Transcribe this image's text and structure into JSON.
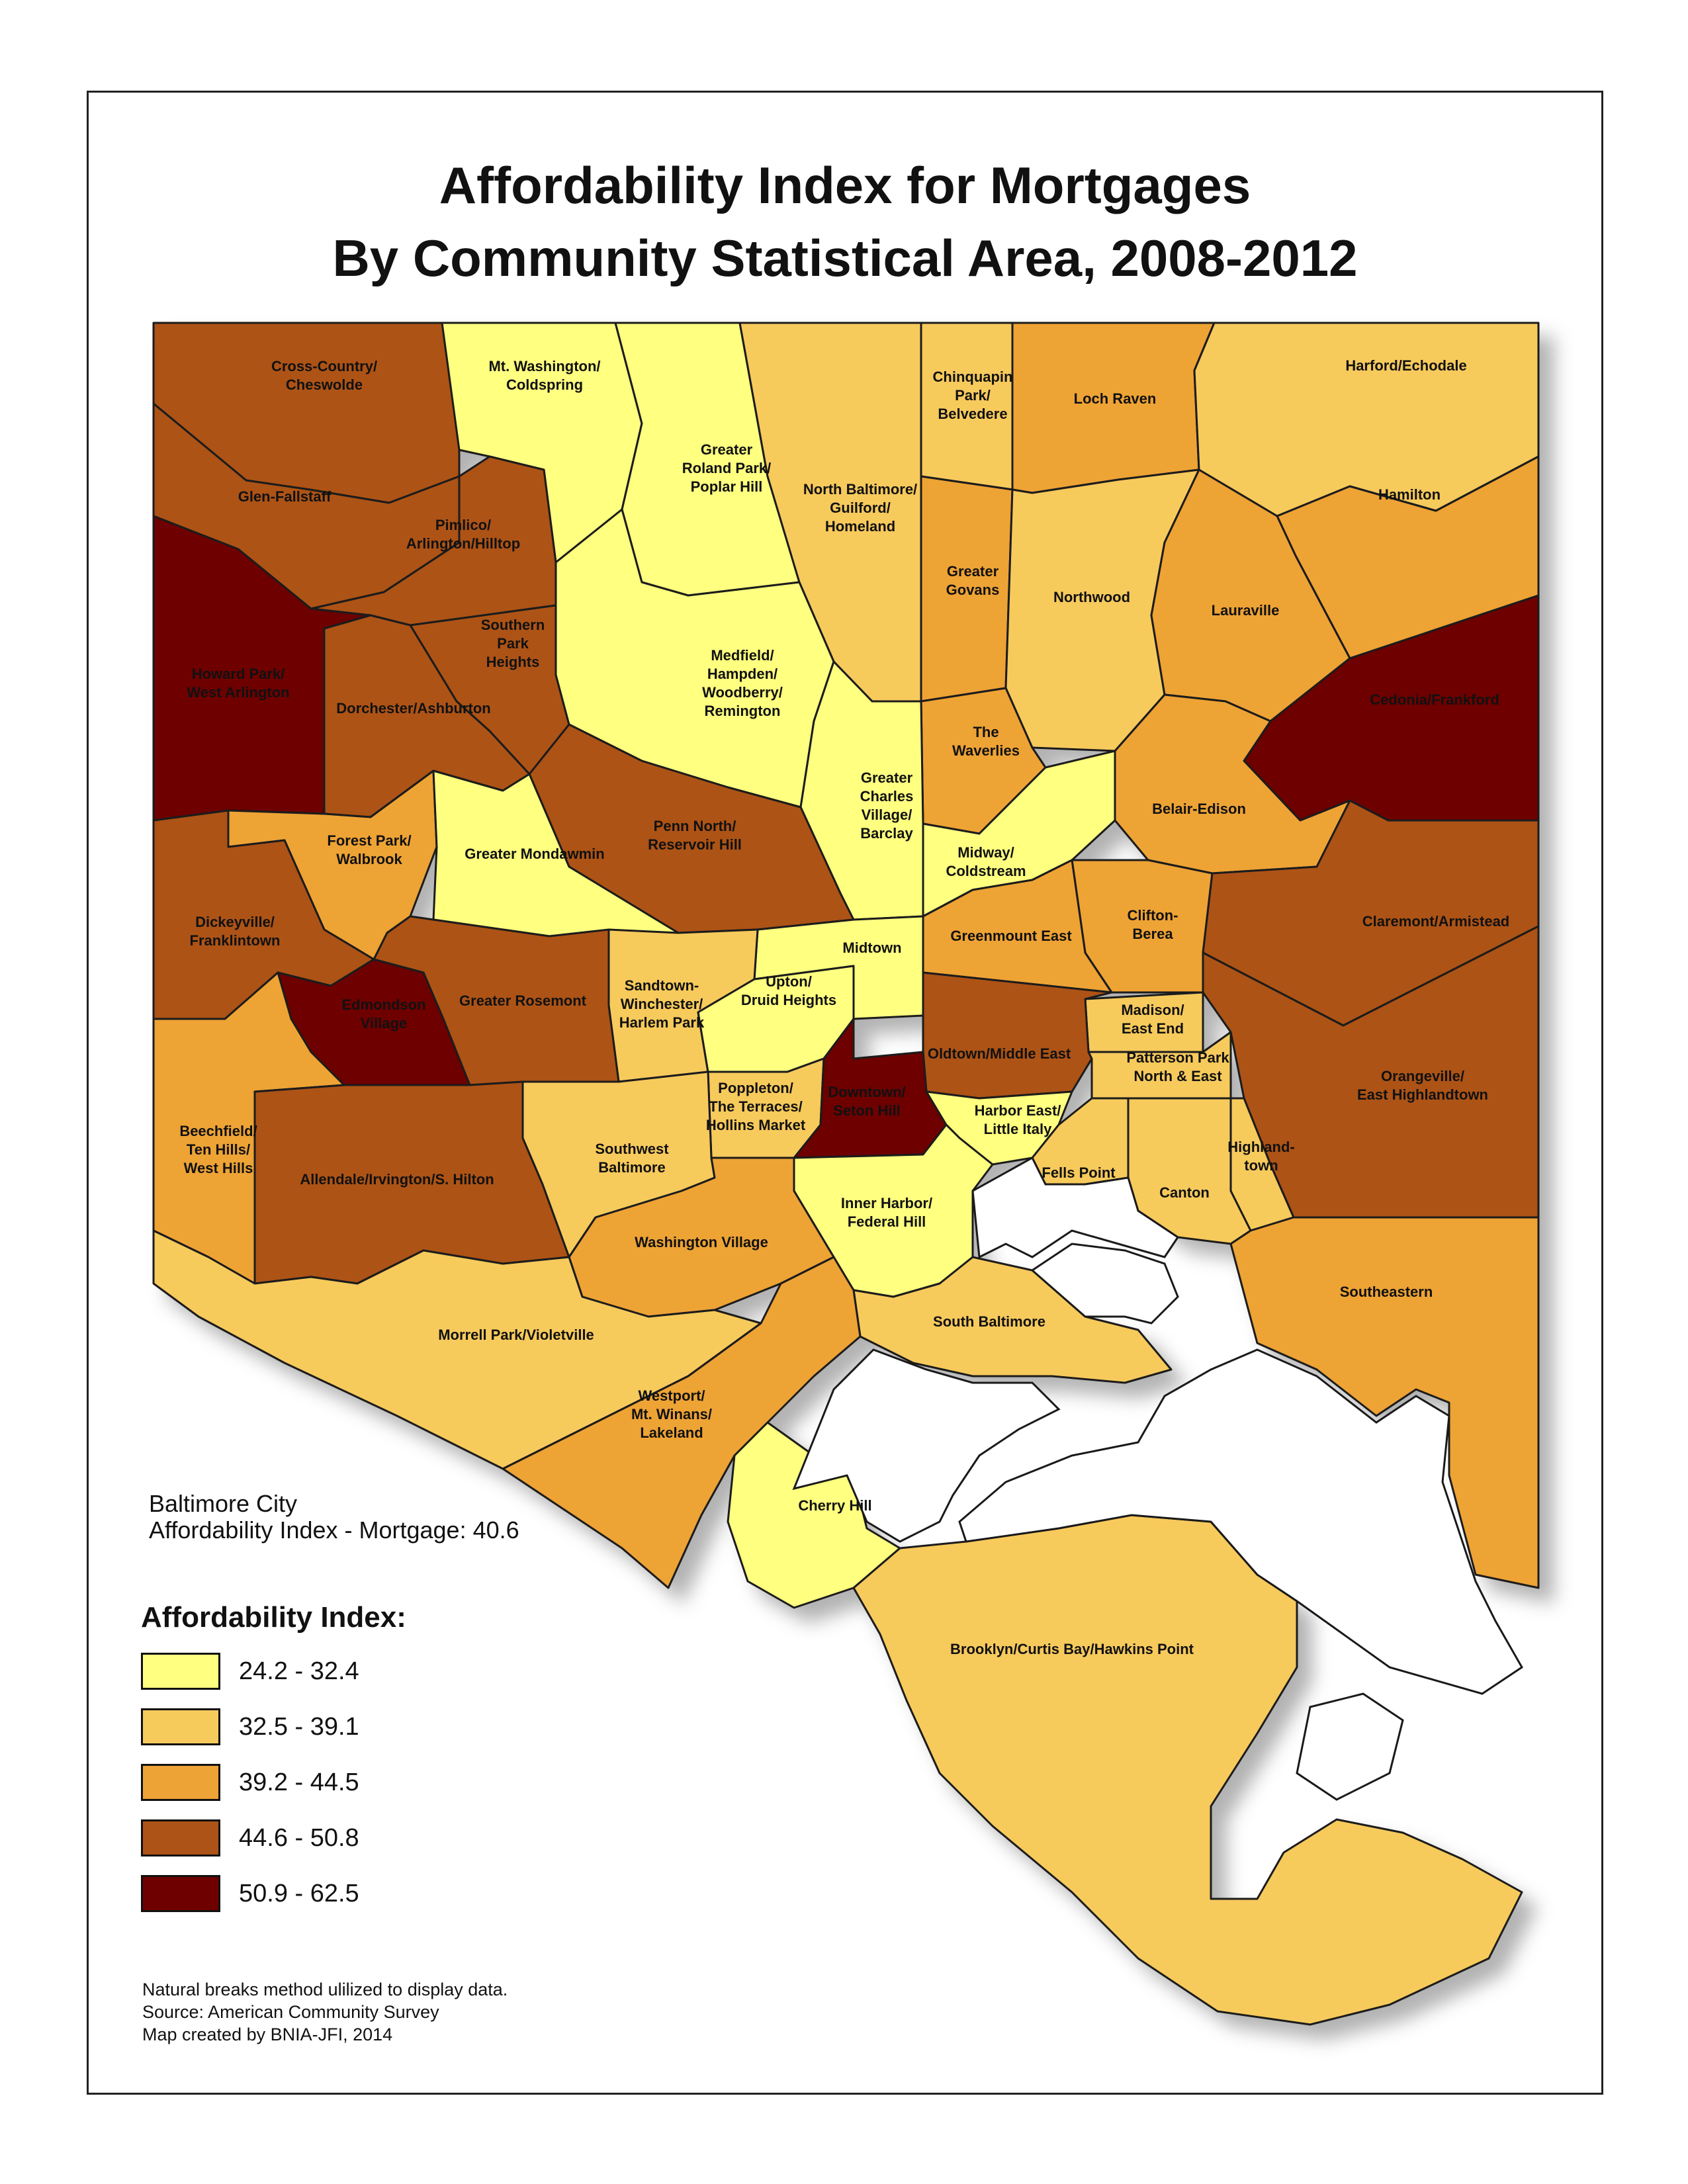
{
  "title": {
    "line1": "Affordability Index for Mortgages",
    "line2": "By Community Statistical Area, 2008-2012"
  },
  "city_summary": {
    "line1": "Baltimore City",
    "line2": "Affordability Index - Mortgage: 40.6"
  },
  "legend": {
    "title": "Affordability Index:",
    "classes": [
      {
        "label": "24.2 - 32.4",
        "color": "#ffff80"
      },
      {
        "label": "32.5 - 39.1",
        "color": "#f7ca5c"
      },
      {
        "label": "39.2 - 44.5",
        "color": "#eea336"
      },
      {
        "label": "44.6 - 50.8",
        "color": "#ad5318"
      },
      {
        "label": "50.9 - 62.5",
        "color": "#6e0000"
      }
    ]
  },
  "regions": [
    {
      "name": "Cross-Country/ Cheswolde",
      "lines": [
        "Cross-Country/",
        "Cheswolde"
      ],
      "class": 3
    },
    {
      "name": "Mt. Washington/ Coldspring",
      "lines": [
        "Mt. Washington/",
        "Coldspring"
      ],
      "class": 0
    },
    {
      "name": "Greater Roland Park/ Poplar Hill",
      "lines": [
        "Greater",
        "Roland Park/",
        "Poplar Hill"
      ],
      "class": 0
    },
    {
      "name": "North Baltimore/ Guilford/ Homeland",
      "lines": [
        "North Baltimore/",
        "Guilford/",
        "Homeland"
      ],
      "class": 1
    },
    {
      "name": "Chinquapin Park/ Belvedere",
      "lines": [
        "Chinquapin",
        "Park/",
        "Belvedere"
      ],
      "class": 1
    },
    {
      "name": "Loch Raven",
      "lines": [
        "Loch Raven"
      ],
      "class": 2
    },
    {
      "name": "Harford/Echodale",
      "lines": [
        "Harford/Echodale"
      ],
      "class": 1
    },
    {
      "name": "Glen-Fallstaff",
      "lines": [
        "Glen-Fallstaff"
      ],
      "class": 3
    },
    {
      "name": "Pimlico/ Arlington/Hilltop",
      "lines": [
        "Pimlico/",
        "Arlington/Hilltop"
      ],
      "class": 3
    },
    {
      "name": "Hamilton",
      "lines": [
        "Hamilton"
      ],
      "class": 2
    },
    {
      "name": "Greater Govans",
      "lines": [
        "Greater",
        "Govans"
      ],
      "class": 2
    },
    {
      "name": "Northwood",
      "lines": [
        "Northwood"
      ],
      "class": 1
    },
    {
      "name": "Lauraville",
      "lines": [
        "Lauraville"
      ],
      "class": 2
    },
    {
      "name": "Howard Park/ West Arlington",
      "lines": [
        "Howard Park/",
        "West Arlington"
      ],
      "class": 4
    },
    {
      "name": "Southern Park Heights",
      "lines": [
        "Southern",
        "Park",
        "Heights"
      ],
      "class": 3
    },
    {
      "name": "Dorchester/Ashburton",
      "lines": [
        "Dorchester/Ashburton"
      ],
      "class": 3
    },
    {
      "name": "Medfield/ Hampden/ Woodberry/ Remington",
      "lines": [
        "Medfield/",
        "Hampden/",
        "Woodberry/",
        "Remington"
      ],
      "class": 0
    },
    {
      "name": "The Waverlies",
      "lines": [
        "The",
        "Waverlies"
      ],
      "class": 2
    },
    {
      "name": "Cedonia/Frankford",
      "lines": [
        "Cedonia/Frankford"
      ],
      "class": 4
    },
    {
      "name": "Greater Charles Village/ Barclay",
      "lines": [
        "Greater",
        "Charles",
        "Village/",
        "Barclay"
      ],
      "class": 0
    },
    {
      "name": "Belair-Edison",
      "lines": [
        "Belair-Edison"
      ],
      "class": 2
    },
    {
      "name": "Forest Park/ Walbrook",
      "lines": [
        "Forest Park/",
        "Walbrook"
      ],
      "class": 2
    },
    {
      "name": "Penn North/ Reservoir Hill",
      "lines": [
        "Penn North/",
        "Reservoir Hill"
      ],
      "class": 3
    },
    {
      "name": "Greater Mondawmin",
      "lines": [
        "Greater Mondawmin"
      ],
      "class": 0
    },
    {
      "name": "Midway/ Coldstream",
      "lines": [
        "Midway/",
        "Coldstream"
      ],
      "class": 0
    },
    {
      "name": "Dickeyville/ Franklintown",
      "lines": [
        "Dickeyville/",
        "Franklintown"
      ],
      "class": 3
    },
    {
      "name": "Clifton-Berea",
      "lines": [
        "Clifton-",
        "Berea"
      ],
      "class": 2
    },
    {
      "name": "Claremont/Armistead",
      "lines": [
        "Claremont/Armistead"
      ],
      "class": 3
    },
    {
      "name": "Greenmount East",
      "lines": [
        "Greenmount East"
      ],
      "class": 2
    },
    {
      "name": "Midtown",
      "lines": [
        "Midtown"
      ],
      "class": 0
    },
    {
      "name": "Sandtown-Winchester/ Harlem Park",
      "lines": [
        "Sandtown-",
        "Winchester/",
        "Harlem Park"
      ],
      "class": 1
    },
    {
      "name": "Upton/ Druid Heights",
      "lines": [
        "Upton/",
        "Druid Heights"
      ],
      "class": 0
    },
    {
      "name": "Edmondson Village",
      "lines": [
        "Edmondson",
        "Village"
      ],
      "class": 4
    },
    {
      "name": "Greater Rosemont",
      "lines": [
        "Greater Rosemont"
      ],
      "class": 3
    },
    {
      "name": "Madison/ East End",
      "lines": [
        "Madison/",
        "East End"
      ],
      "class": 1
    },
    {
      "name": "Oldtown/Middle East",
      "lines": [
        "Oldtown/Middle East"
      ],
      "class": 3
    },
    {
      "name": "Patterson Park North & East",
      "lines": [
        "Patterson Park",
        "North & East"
      ],
      "class": 1
    },
    {
      "name": "Orangeville/ East Highlandtown",
      "lines": [
        "Orangeville/",
        "East Highlandtown"
      ],
      "class": 3
    },
    {
      "name": "Poppleton/ The Terraces/ Hollins Market",
      "lines": [
        "Poppleton/",
        "The Terraces/",
        "Hollins Market"
      ],
      "class": 1
    },
    {
      "name": "Downtown/ Seton Hill",
      "lines": [
        "Downtown/",
        "Seton Hill"
      ],
      "class": 4
    },
    {
      "name": "Harbor East/ Little Italy",
      "lines": [
        "Harbor East/",
        "Little Italy"
      ],
      "class": 0
    },
    {
      "name": "Beechfield/ Ten Hills/ West Hills",
      "lines": [
        "Beechfield/",
        "Ten Hills/",
        "West Hills"
      ],
      "class": 2
    },
    {
      "name": "Allendale/Irvington/S. Hilton",
      "lines": [
        "Allendale/Irvington/S. Hilton"
      ],
      "class": 3
    },
    {
      "name": "Southwest Baltimore",
      "lines": [
        "Southwest",
        "Baltimore"
      ],
      "class": 1
    },
    {
      "name": "Highlandtown",
      "lines": [
        "Highland-",
        "town"
      ],
      "class": 1
    },
    {
      "name": "Fells Point",
      "lines": [
        "Fells Point"
      ],
      "class": 1
    },
    {
      "name": "Canton",
      "lines": [
        "Canton"
      ],
      "class": 1
    },
    {
      "name": "Inner Harbor/ Federal Hill",
      "lines": [
        "Inner Harbor/",
        "Federal Hill"
      ],
      "class": 0
    },
    {
      "name": "Washington Village",
      "lines": [
        "Washington Village"
      ],
      "class": 2
    },
    {
      "name": "Southeastern",
      "lines": [
        "Southeastern"
      ],
      "class": 2
    },
    {
      "name": "South Baltimore",
      "lines": [
        "South Baltimore"
      ],
      "class": 1
    },
    {
      "name": "Morrell Park/Violetville",
      "lines": [
        "Morrell Park/Violetville"
      ],
      "class": 1
    },
    {
      "name": "Westport/ Mt. Winans/ Lakeland",
      "lines": [
        "Westport/",
        "Mt. Winans/",
        "Lakeland"
      ],
      "class": 2
    },
    {
      "name": "Cherry Hill",
      "lines": [
        "Cherry Hill"
      ],
      "class": 0
    },
    {
      "name": "Brooklyn/Curtis Bay/Hawkins Point",
      "lines": [
        "Brooklyn/Curtis Bay/Hawkins Point"
      ],
      "class": 1
    }
  ],
  "notes": [
    "Natural breaks method ulilized to display data.",
    "Source: American Community Survey",
    "Map created by BNIA-JFI, 2014"
  ]
}
